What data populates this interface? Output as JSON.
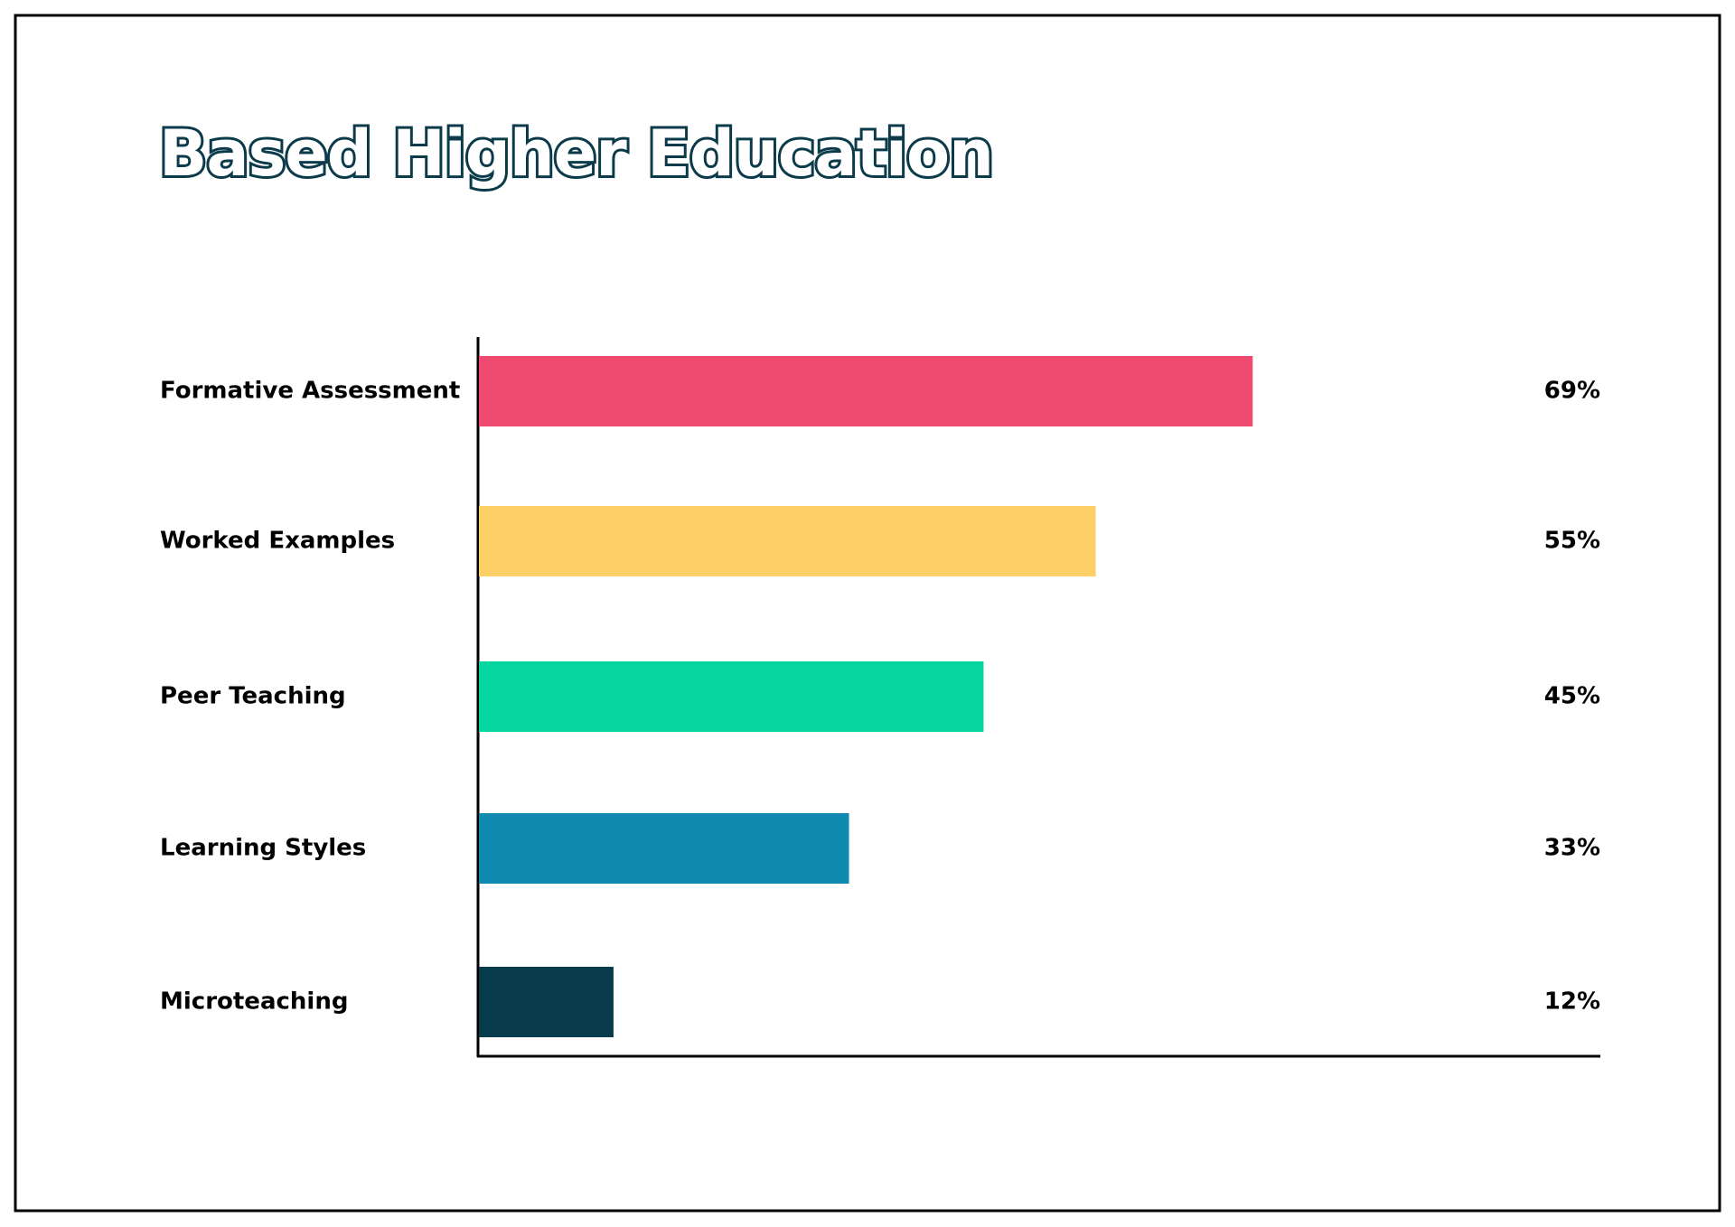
{
  "chart_data": {
    "type": "bar",
    "orientation": "horizontal",
    "title": "Based Higher Education",
    "categories": [
      "Formative Assessment",
      "Worked Examples",
      "Peer Teaching",
      "Learning Styles",
      "Microteaching"
    ],
    "values": [
      69,
      55,
      45,
      33,
      12
    ],
    "value_labels": [
      "69%",
      "55%",
      "45%",
      "33%",
      "12%"
    ],
    "colors": [
      "#ef4a6f",
      "#fdd067",
      "#06d6a0",
      "#118ab2",
      "#073b4c"
    ],
    "xlim": [
      0,
      100
    ]
  }
}
